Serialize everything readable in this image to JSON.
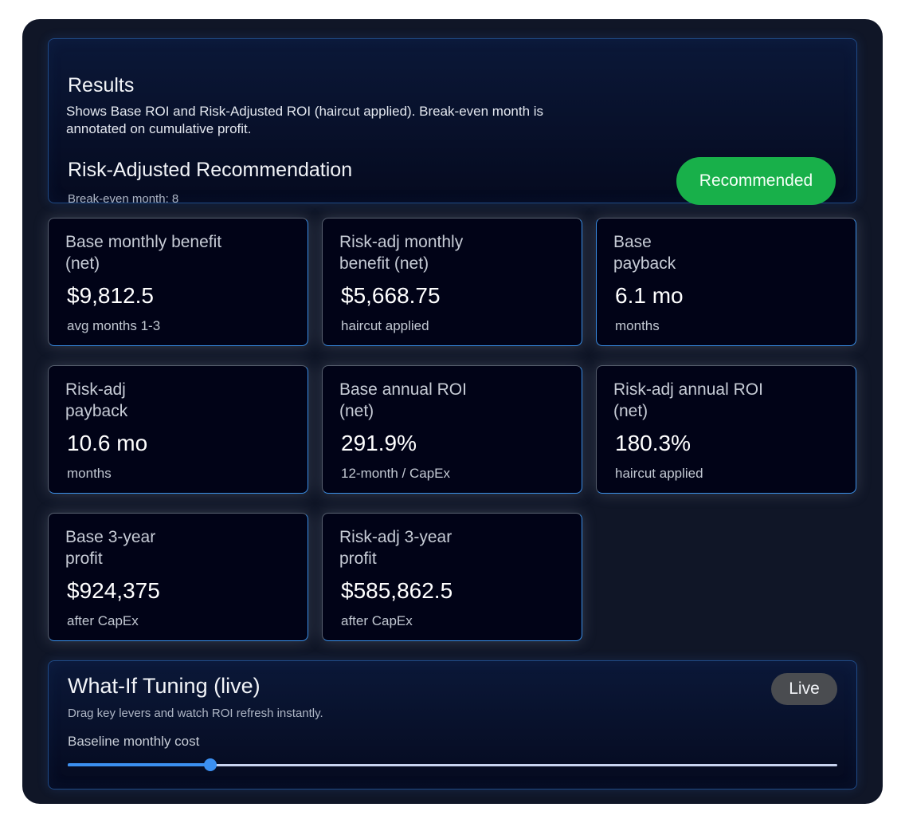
{
  "results": {
    "title": "Results",
    "description": "Shows Base ROI and Risk-Adjusted ROI (haircut applied). Break-even month is annotated on cumulative profit.",
    "recommendation_title": "Risk-Adjusted Recommendation",
    "break_even": "Break-even month: 8",
    "badge": "Recommended",
    "badge_color": "#18b04a"
  },
  "metrics": [
    {
      "label": "Base monthly benefit (net)",
      "value": "$9,812.5",
      "sub": "avg months 1-3"
    },
    {
      "label": "Risk-adj monthly benefit (net)",
      "value": "$5,668.75",
      "sub": "haircut applied"
    },
    {
      "label": "Base payback",
      "value": "6.1 mo",
      "sub": "months"
    },
    {
      "label": "Risk-adj payback",
      "value": "10.6 mo",
      "sub": "months"
    },
    {
      "label": "Base annual ROI (net)",
      "value": "291.9%",
      "sub": "12-month / CapEx"
    },
    {
      "label": "Risk-adj annual ROI (net)",
      "value": "180.3%",
      "sub": "haircut applied"
    },
    {
      "label": "Base 3-year profit",
      "value": "$924,375",
      "sub": "after CapEx"
    },
    {
      "label": "Risk-adj 3-year profit",
      "value": "$585,862.5",
      "sub": "after CapEx"
    }
  ],
  "whatif": {
    "title": "What-If Tuning (live)",
    "description": "Drag key levers and watch ROI refresh instantly.",
    "badge": "Live",
    "slider_label": "Baseline monthly cost",
    "slider_fraction": 0.185,
    "accent": "#3b8ff0"
  }
}
